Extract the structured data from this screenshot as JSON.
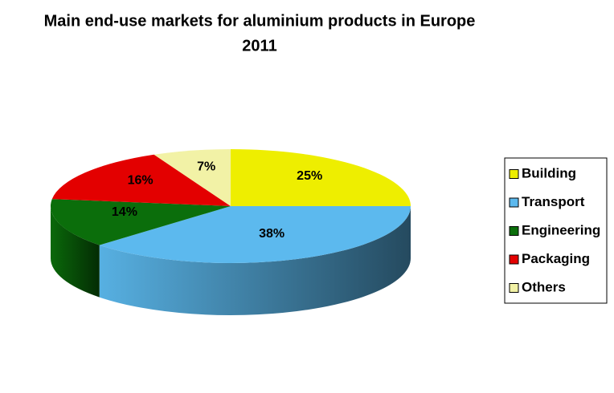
{
  "chart_data": {
    "type": "pie3d",
    "title": "Main end-use markets for aluminium products in Europe",
    "subtitle": "2011",
    "categories": [
      "Building",
      "Transport",
      "Engineering",
      "Packaging",
      "Others"
    ],
    "values": [
      25,
      38,
      14,
      16,
      7
    ],
    "value_labels": [
      "25%",
      "38%",
      "14%",
      "16%",
      "7%"
    ],
    "colors": [
      "#eeee00",
      "#5cb9ee",
      "#0b6e0b",
      "#e30000",
      "#f2f2a6"
    ],
    "legend": "right"
  }
}
